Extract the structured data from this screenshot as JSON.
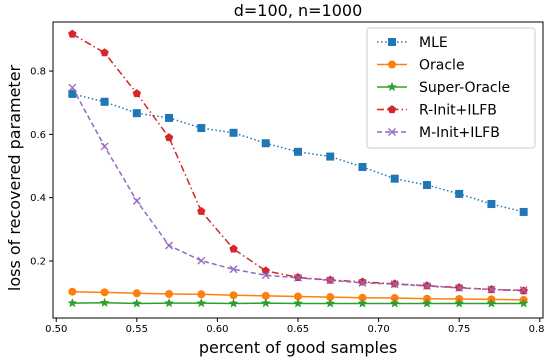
{
  "chart_data": {
    "type": "line",
    "title": "d=100, n=1000",
    "xlabel": "percent of good samples",
    "ylabel": "loss of recovered parameter",
    "xlim": [
      0.498,
      0.802
    ],
    "ylim": [
      0.02,
      0.955
    ],
    "xticks": [
      0.5,
      0.55,
      0.6,
      0.65,
      0.7,
      0.75,
      0.8
    ],
    "xtick_labels": [
      "0.50",
      "0.55",
      "0.60",
      "0.65",
      "0.70",
      "0.75",
      "0.80"
    ],
    "yticks": [
      0.2,
      0.4,
      0.6,
      0.8
    ],
    "ytick_labels": [
      "0.2",
      "0.4",
      "0.6",
      "0.8"
    ],
    "grid": false,
    "legend_position": "top-right",
    "x": [
      0.51,
      0.53,
      0.55,
      0.57,
      0.59,
      0.61,
      0.63,
      0.65,
      0.67,
      0.69,
      0.71,
      0.73,
      0.75,
      0.77,
      0.79
    ],
    "series": [
      {
        "name": "MLE",
        "color": "#1f77b4",
        "line_style": "dotted",
        "marker": "square",
        "values": [
          0.728,
          0.703,
          0.667,
          0.652,
          0.62,
          0.605,
          0.572,
          0.545,
          0.53,
          0.497,
          0.46,
          0.44,
          0.412,
          0.38,
          0.355
        ]
      },
      {
        "name": "Oracle",
        "color": "#ff7f0e",
        "line_style": "solid",
        "marker": "circle",
        "values": [
          0.103,
          0.101,
          0.098,
          0.096,
          0.095,
          0.092,
          0.09,
          0.088,
          0.086,
          0.084,
          0.083,
          0.081,
          0.08,
          0.079,
          0.077
        ]
      },
      {
        "name": "Super-Oracle",
        "color": "#2ca02c",
        "line_style": "solid",
        "marker": "star",
        "values": [
          0.067,
          0.068,
          0.066,
          0.067,
          0.067,
          0.066,
          0.067,
          0.066,
          0.066,
          0.066,
          0.066,
          0.066,
          0.066,
          0.066,
          0.066
        ]
      },
      {
        "name": "R-Init+ILFB",
        "color": "#d62728",
        "line_style": "dashdot",
        "marker": "pentagon",
        "values": [
          0.917,
          0.858,
          0.729,
          0.59,
          0.357,
          0.238,
          0.169,
          0.148,
          0.14,
          0.134,
          0.128,
          0.122,
          0.116,
          0.11,
          0.106
        ]
      },
      {
        "name": "M-Init+ILFB",
        "color": "#9467bd",
        "line_style": "dashed",
        "marker": "x",
        "values": [
          0.748,
          0.562,
          0.39,
          0.249,
          0.201,
          0.174,
          0.155,
          0.147,
          0.139,
          0.131,
          0.127,
          0.121,
          0.115,
          0.11,
          0.108
        ]
      }
    ]
  }
}
